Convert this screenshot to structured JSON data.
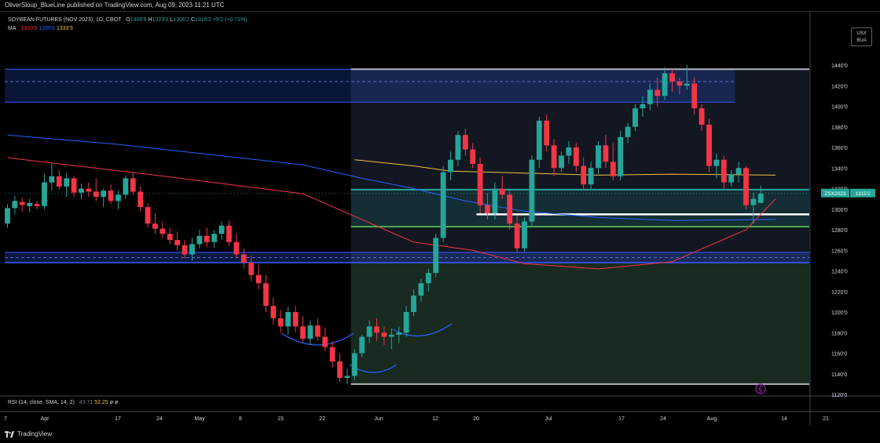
{
  "header": {
    "publisher_line": "OliverSloup_BlueLine published on TradingView.com, Aug 09, 2023 11:21 UTC"
  },
  "legend": {
    "symbol": "SOYBEAN FUTURES (NOV 2023), 1D, CBOT",
    "open_label": "O",
    "open": "1306'6",
    "high_label": "H",
    "high": "1323'0",
    "low_label": "L",
    "low": "1306'2",
    "close_label": "C",
    "close": "1315'2",
    "change": "+9'2 (+0.71%)",
    "ma_label": "MA",
    "ma_values": [
      "1310'3",
      "1289'6",
      "1333'3"
    ]
  },
  "currency": {
    "line1": "USX",
    "line2": "BUA"
  },
  "price_tag": {
    "symbol": "ZSX2023",
    "price": "1315'2"
  },
  "rsi": {
    "label": "RSI (14, close, SMA, 14, 2)",
    "value1": "43.71",
    "value2": "52.25",
    "extra": "ø ø"
  },
  "footer": {
    "brand": "TradingView"
  },
  "colors": {
    "up": "#26a69a",
    "down": "#f23645",
    "ma_fast": "#f23645",
    "ma_mid": "#2962ff",
    "ma_slow": "#f0c040",
    "zone_blue": "#2962ff",
    "zone_green": "#26a69a"
  },
  "chart_data": {
    "type": "candlestick",
    "title": "SOYBEAN FUTURES (NOV 2023), 1D, CBOT",
    "y_tick_labels": [
      "1440'0",
      "1420'0",
      "1400'0",
      "1380'0",
      "1360'0",
      "1340'0",
      "1320'0",
      "1300'0",
      "1280'0",
      "1260'0",
      "1240'0",
      "1220'0",
      "1200'0",
      "1180'0",
      "1160'0",
      "1140'0",
      "1120'0"
    ],
    "x_tick_labels": [
      "7",
      "Apr",
      "17",
      "24",
      "May",
      "8",
      "15",
      "22",
      "Jun",
      "12",
      "20",
      "Jul",
      "17",
      "24",
      "Aug",
      "14",
      "21"
    ],
    "ylim": [
      1113,
      1449
    ],
    "candles_note": "open, high, low, close in cents (approximate daily values, Mar 31 – Aug 8 2023)",
    "candles": [
      [
        1286,
        1305,
        1282,
        1301
      ],
      [
        1301,
        1313,
        1295,
        1308
      ],
      [
        1307,
        1311,
        1298,
        1304
      ],
      [
        1303,
        1310,
        1297,
        1306
      ],
      [
        1305,
        1308,
        1300,
        1303
      ],
      [
        1303,
        1334,
        1300,
        1326
      ],
      [
        1326,
        1345,
        1318,
        1332
      ],
      [
        1332,
        1338,
        1319,
        1322
      ],
      [
        1322,
        1335,
        1312,
        1330
      ],
      [
        1330,
        1332,
        1312,
        1316
      ],
      [
        1316,
        1325,
        1310,
        1320
      ],
      [
        1320,
        1326,
        1312,
        1317
      ],
      [
        1317,
        1330,
        1308,
        1312
      ],
      [
        1312,
        1320,
        1302,
        1318
      ],
      [
        1318,
        1324,
        1305,
        1308
      ],
      [
        1308,
        1318,
        1300,
        1314
      ],
      [
        1314,
        1333,
        1310,
        1330
      ],
      [
        1330,
        1336,
        1314,
        1317
      ],
      [
        1317,
        1322,
        1298,
        1302
      ],
      [
        1302,
        1306,
        1282,
        1286
      ],
      [
        1286,
        1296,
        1276,
        1281
      ],
      [
        1281,
        1288,
        1272,
        1276
      ],
      [
        1276,
        1282,
        1266,
        1270
      ],
      [
        1270,
        1278,
        1260,
        1265
      ],
      [
        1265,
        1270,
        1252,
        1256
      ],
      [
        1256,
        1272,
        1250,
        1266
      ],
      [
        1266,
        1280,
        1262,
        1274
      ],
      [
        1274,
        1282,
        1263,
        1268
      ],
      [
        1268,
        1280,
        1262,
        1276
      ],
      [
        1276,
        1288,
        1270,
        1284
      ],
      [
        1284,
        1289,
        1264,
        1268
      ],
      [
        1268,
        1276,
        1252,
        1256
      ],
      [
        1256,
        1262,
        1242,
        1248
      ],
      [
        1248,
        1255,
        1230,
        1236
      ],
      [
        1236,
        1246,
        1222,
        1228
      ],
      [
        1228,
        1236,
        1200,
        1206
      ],
      [
        1206,
        1214,
        1188,
        1194
      ],
      [
        1194,
        1202,
        1180,
        1186
      ],
      [
        1186,
        1205,
        1178,
        1200
      ],
      [
        1200,
        1206,
        1180,
        1186
      ],
      [
        1186,
        1196,
        1170,
        1174
      ],
      [
        1174,
        1192,
        1168,
        1187
      ],
      [
        1187,
        1194,
        1172,
        1176
      ],
      [
        1176,
        1185,
        1162,
        1166
      ],
      [
        1166,
        1172,
        1146,
        1152
      ],
      [
        1152,
        1160,
        1132,
        1136
      ],
      [
        1136,
        1145,
        1130,
        1138
      ],
      [
        1138,
        1164,
        1134,
        1160
      ],
      [
        1160,
        1178,
        1156,
        1176
      ],
      [
        1176,
        1192,
        1170,
        1186
      ],
      [
        1186,
        1194,
        1172,
        1180
      ],
      [
        1180,
        1186,
        1168,
        1176
      ],
      [
        1176,
        1184,
        1164,
        1178
      ],
      [
        1178,
        1186,
        1170,
        1180
      ],
      [
        1180,
        1206,
        1176,
        1200
      ],
      [
        1200,
        1222,
        1196,
        1216
      ],
      [
        1216,
        1232,
        1210,
        1228
      ],
      [
        1228,
        1242,
        1220,
        1238
      ],
      [
        1238,
        1276,
        1234,
        1272
      ],
      [
        1272,
        1342,
        1268,
        1336
      ],
      [
        1336,
        1356,
        1328,
        1348
      ],
      [
        1348,
        1376,
        1342,
        1372
      ],
      [
        1372,
        1378,
        1352,
        1358
      ],
      [
        1358,
        1364,
        1340,
        1344
      ],
      [
        1344,
        1350,
        1296,
        1304
      ],
      [
        1304,
        1316,
        1290,
        1296
      ],
      [
        1296,
        1326,
        1290,
        1320
      ],
      [
        1320,
        1332,
        1310,
        1314
      ],
      [
        1314,
        1318,
        1280,
        1286
      ],
      [
        1286,
        1294,
        1258,
        1262
      ],
      [
        1262,
        1292,
        1258,
        1288
      ],
      [
        1288,
        1352,
        1284,
        1348
      ],
      [
        1348,
        1390,
        1340,
        1386
      ],
      [
        1386,
        1392,
        1356,
        1362
      ],
      [
        1362,
        1368,
        1332,
        1340
      ],
      [
        1340,
        1356,
        1336,
        1352
      ],
      [
        1352,
        1366,
        1344,
        1360
      ],
      [
        1360,
        1364,
        1336,
        1342
      ],
      [
        1342,
        1350,
        1318,
        1324
      ],
      [
        1324,
        1346,
        1320,
        1340
      ],
      [
        1340,
        1366,
        1334,
        1362
      ],
      [
        1362,
        1372,
        1340,
        1346
      ],
      [
        1346,
        1364,
        1328,
        1332
      ],
      [
        1332,
        1376,
        1328,
        1370
      ],
      [
        1370,
        1384,
        1364,
        1380
      ],
      [
        1380,
        1402,
        1376,
        1398
      ],
      [
        1398,
        1410,
        1390,
        1402
      ],
      [
        1402,
        1422,
        1396,
        1416
      ],
      [
        1416,
        1428,
        1400,
        1410
      ],
      [
        1410,
        1438,
        1406,
        1432
      ],
      [
        1432,
        1436,
        1414,
        1424
      ],
      [
        1424,
        1428,
        1412,
        1420
      ],
      [
        1420,
        1440,
        1416,
        1422
      ],
      [
        1422,
        1428,
        1392,
        1398
      ],
      [
        1398,
        1402,
        1376,
        1382
      ],
      [
        1382,
        1388,
        1336,
        1342
      ],
      [
        1342,
        1354,
        1330,
        1348
      ],
      [
        1348,
        1352,
        1320,
        1326
      ],
      [
        1326,
        1338,
        1322,
        1334
      ],
      [
        1334,
        1346,
        1326,
        1340
      ],
      [
        1340,
        1342,
        1300,
        1304
      ],
      [
        1304,
        1316,
        1286,
        1310
      ],
      [
        1306,
        1323,
        1306,
        1315
      ]
    ],
    "moving_averages": [
      {
        "name": "MA",
        "value_label": "1310'3",
        "points": [
          [
            0,
            1350
          ],
          [
            20,
            1333
          ],
          [
            40,
            1315
          ],
          [
            47,
            1293
          ],
          [
            55,
            1268
          ],
          [
            63,
            1260
          ],
          [
            70,
            1247
          ],
          [
            80,
            1242
          ],
          [
            90,
            1249
          ],
          [
            100,
            1280
          ],
          [
            104,
            1310
          ]
        ]
      },
      {
        "name": "MA",
        "value_label": "1289'6",
        "points": [
          [
            0,
            1372
          ],
          [
            15,
            1363
          ],
          [
            30,
            1351
          ],
          [
            40,
            1343
          ],
          [
            48,
            1330
          ],
          [
            55,
            1320
          ],
          [
            62,
            1308
          ],
          [
            70,
            1298
          ],
          [
            80,
            1292
          ],
          [
            90,
            1289
          ],
          [
            104,
            1290
          ]
        ]
      },
      {
        "name": "MA",
        "value_label": "1333'3",
        "points": [
          [
            47,
            1348
          ],
          [
            55,
            1342
          ],
          [
            60,
            1337
          ],
          [
            70,
            1335
          ],
          [
            80,
            1333
          ],
          [
            90,
            1334
          ],
          [
            104,
            1333
          ]
        ]
      }
    ],
    "horizontal_levels": [
      1436,
      1404,
      1319,
      1295,
      1283,
      1258,
      1252,
      1248,
      1130
    ],
    "zones": [
      {
        "from": 1404,
        "to": 1436,
        "color": "blue"
      },
      {
        "from": 1248,
        "to": 1258,
        "color": "blue"
      },
      {
        "from": 1283,
        "to": 1319,
        "color": "green"
      },
      {
        "from": 1130,
        "to": 1248,
        "color": "green"
      }
    ],
    "current_price": 1315.25
  }
}
